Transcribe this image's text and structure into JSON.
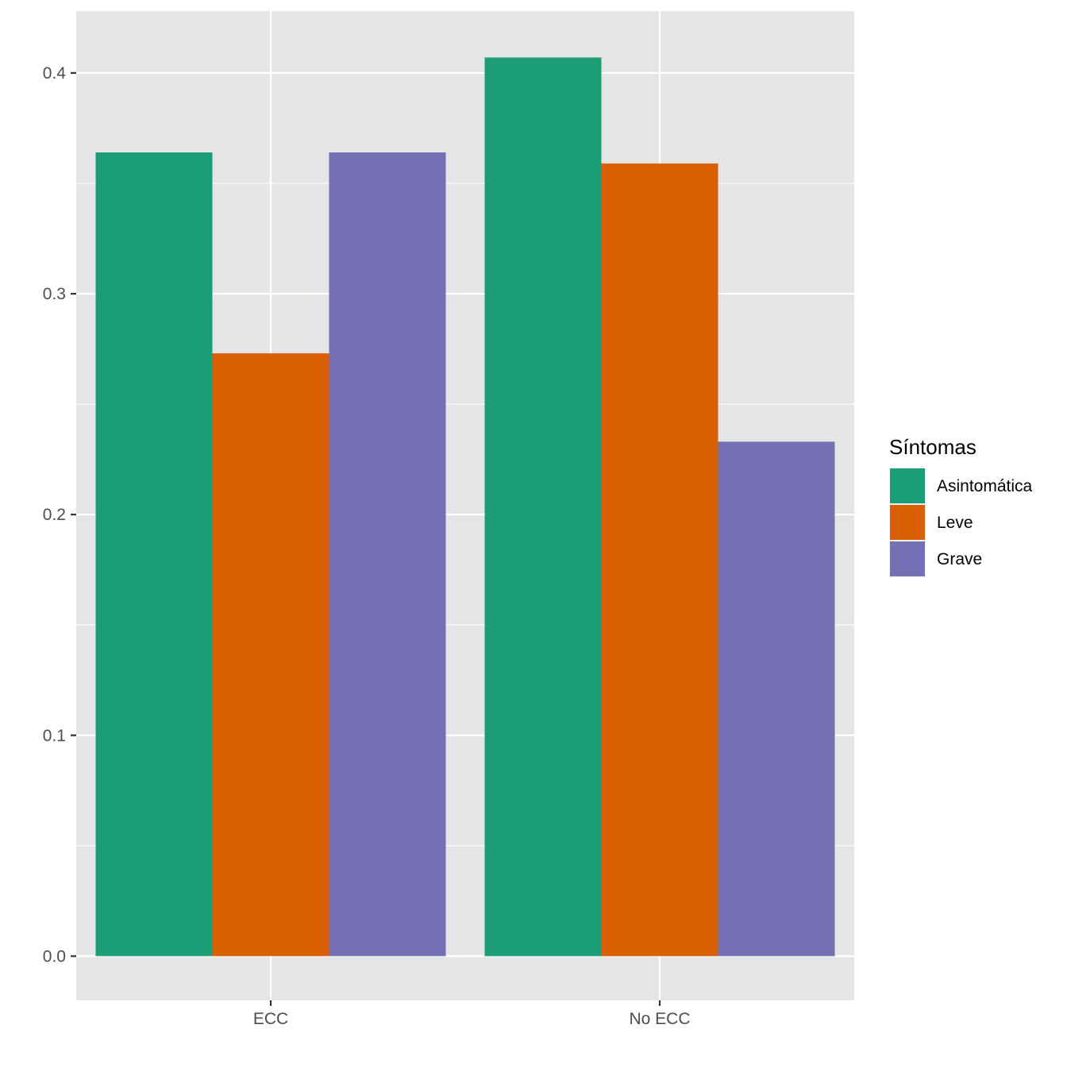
{
  "chart_data": {
    "type": "bar",
    "categories": [
      "ECC",
      "No ECC"
    ],
    "series": [
      {
        "name": "Asintomática",
        "color": "#1B9E77",
        "values": [
          0.364,
          0.407
        ]
      },
      {
        "name": "Leve",
        "color": "#D95F02",
        "values": [
          0.273,
          0.359
        ]
      },
      {
        "name": "Grave",
        "color": "#7570B3",
        "values": [
          0.364,
          0.233
        ]
      }
    ],
    "title": "",
    "xlabel": "",
    "ylabel": "",
    "ylim": [
      -0.02,
      0.428
    ],
    "yticks": [
      0.0,
      0.1,
      0.2,
      0.3,
      0.4
    ],
    "ytick_labels": [
      "0.0",
      "0.1",
      "0.2",
      "0.3",
      "0.4"
    ],
    "grid": true,
    "panel_background": "#E5E5E5",
    "legend": {
      "title": "Síntomas",
      "position": "right"
    }
  }
}
